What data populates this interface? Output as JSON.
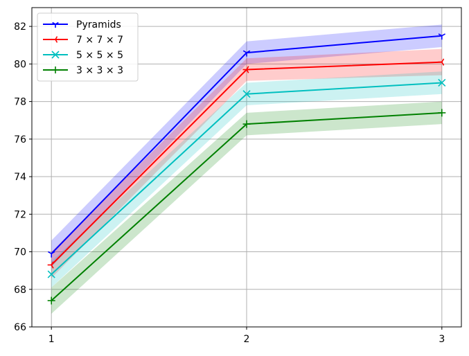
{
  "chart_data": {
    "type": "line",
    "title": "",
    "xlabel": "",
    "ylabel": "",
    "x": [
      1,
      2,
      3
    ],
    "xlim": [
      0.9,
      3.1
    ],
    "ylim": [
      66,
      83
    ],
    "xticks": [
      1,
      2,
      3
    ],
    "yticks": [
      66,
      68,
      70,
      72,
      74,
      76,
      78,
      80,
      82
    ],
    "grid": true,
    "legend_position": "upper-left",
    "series": [
      {
        "name": "Pyramids",
        "color": "#0000ff",
        "marker": "tri_down",
        "values": [
          69.9,
          80.6,
          81.5
        ],
        "band_lower": [
          69.2,
          80.0,
          80.9
        ],
        "band_upper": [
          70.6,
          81.2,
          82.1
        ]
      },
      {
        "name": "7 × 7 × 7",
        "color": "#ff0000",
        "marker": "tri_left",
        "values": [
          69.3,
          79.7,
          80.1
        ],
        "band_lower": [
          68.6,
          79.1,
          79.4
        ],
        "band_upper": [
          70.0,
          80.3,
          80.8
        ]
      },
      {
        "name": "5 × 5 × 5",
        "color": "#00bfbf",
        "marker": "x",
        "values": [
          68.8,
          78.4,
          79.0
        ],
        "band_lower": [
          68.1,
          77.8,
          78.4
        ],
        "band_upper": [
          69.5,
          79.0,
          79.6
        ]
      },
      {
        "name": "3 × 3 × 3",
        "color": "#008000",
        "marker": "plus",
        "values": [
          67.4,
          76.8,
          77.4
        ],
        "band_lower": [
          66.7,
          76.2,
          76.8
        ],
        "band_upper": [
          68.1,
          77.4,
          78.0
        ]
      }
    ]
  }
}
